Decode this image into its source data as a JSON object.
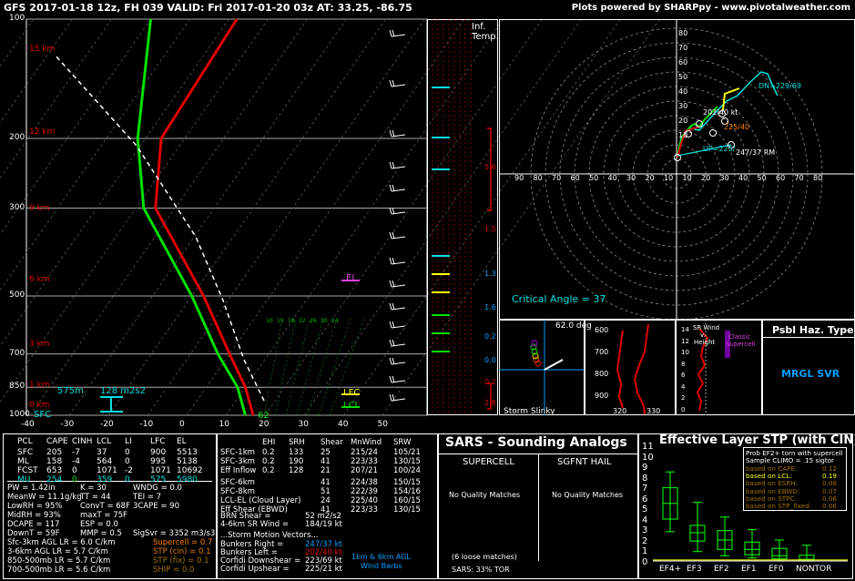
{
  "header": {
    "title": "GFS 2017-01-18 12z, FH 039   VALID: Fri 2017-01-20 03z   AT: 33.25, -86.75",
    "credit": "Plots powered by SHARPpy - www.pivotalweather.com"
  },
  "skewt": {
    "pressure_labels": [
      "100",
      "200",
      "300",
      "500",
      "700",
      "850",
      "1000"
    ],
    "height_labels": [
      "15 km",
      "12 km",
      "9 km",
      "6 km",
      "3 km",
      "1 km",
      "0 km"
    ],
    "temp_ticks": [
      "-40",
      "-30",
      "-20",
      "-10",
      "0",
      "10",
      "20",
      "30",
      "40",
      "50"
    ],
    "mix_labels": [
      "10",
      "15",
      "18",
      "22",
      "26",
      "30",
      "24"
    ],
    "annotations": {
      "el": "EL",
      "lfc": "LFC",
      "lcl": "LCL",
      "sfc": "SFC",
      "sfc_val": "575m",
      "eff_srh": "128 m2s2",
      "sfc_temp": "62"
    }
  },
  "inflection": {
    "title1": "Inf.",
    "title2": "Temp.",
    "values": [
      "5.6",
      "1.5",
      "1.3",
      "1.6",
      "0.2",
      "0.0",
      "0.2",
      "2.8"
    ]
  },
  "hodograph": {
    "y_ticks": [
      "80",
      "70",
      "60",
      "50",
      "40",
      "30",
      "20",
      "10"
    ],
    "x_ticks": [
      "90",
      "80",
      "70",
      "60",
      "50",
      "40",
      "30",
      "20",
      "10",
      "10",
      "20",
      "30",
      "40",
      "50",
      "60",
      "70",
      "80"
    ],
    "labels": {
      "dn": "DN=229/69",
      "mean": "202/40 kt",
      "lcl": "225/40",
      "up": "UP=225/",
      "rm": "247/37 RM"
    },
    "critical_angle": "Critical Angle = 37"
  },
  "storm_slinky": {
    "label": "Storm Slinky",
    "angle": "62.0 deg"
  },
  "theta_panel": {
    "y_ticks": [
      "600",
      "700",
      "800",
      "900"
    ],
    "x_ticks": [
      "320",
      "330"
    ]
  },
  "srwind_panel": {
    "title1": "SR Wind",
    "title2": "v.",
    "title3": "Height",
    "note1": "Classic",
    "note2": "Supercell",
    "y_ticks": [
      "14",
      "12",
      "10",
      "8",
      "6",
      "4",
      "2",
      "0"
    ]
  },
  "hazard": {
    "title": "Psbl Haz. Type",
    "value": "MRGL SVR"
  },
  "parcels": {
    "headers": [
      "PCL",
      "CAPE",
      "CINH",
      "LCL",
      "LI",
      "LFC",
      "EL"
    ],
    "rows": [
      [
        "SFC",
        "205",
        "-7",
        "37",
        "0",
        "900",
        "5513"
      ],
      [
        "ML",
        "158",
        "-4",
        "564",
        "0",
        "995",
        "5138"
      ],
      [
        "FCST",
        "653",
        "0",
        "1071",
        "-2",
        "1071",
        "10692"
      ],
      [
        "MU",
        "254",
        "0",
        "359",
        "0",
        "575",
        "5980"
      ]
    ]
  },
  "thermo": {
    "lines": [
      [
        "PW = 1.42in",
        "K = 30",
        "WNDG = 0.0"
      ],
      [
        "MeanW = 11.1g/kg",
        "TT = 44",
        "TEI = 7"
      ],
      [
        "LowRH = 95%",
        "ConvT = 68F",
        "3CAPE = 90"
      ],
      [
        "MidRH = 93%",
        "maxT = 75F",
        ""
      ],
      [
        "DCAPE = 117",
        "ESP = 0.0",
        ""
      ],
      [
        "DownT = 59F",
        "MMP = 0.5",
        "SigSvr = 3352 m3/s3"
      ]
    ],
    "lapse": [
      "Sfc-3km AGL LR = 6.0 C/km",
      "3-6km AGL LR = 5.7 C/km",
      "850-500mb LR = 5.7 C/km",
      "700-500mb LR = 5.6 C/km"
    ],
    "composite": [
      "Supercell = 0.7",
      "STP (cin) = 0.1",
      "STP (fix) = 0.1",
      "SHIP = 0.0"
    ]
  },
  "kinematics": {
    "headers": [
      "EHI",
      "SRH",
      "Shear",
      "MnWind",
      "SRW"
    ],
    "rows": [
      [
        "SFC-1km",
        "0.2",
        "133",
        "25",
        "215/24",
        "105/21"
      ],
      [
        "SFC-3km",
        "0.2",
        "190",
        "41",
        "223/33",
        "130/15"
      ],
      [
        "Eff Inflow",
        "0.2",
        "128",
        "21",
        "207/21",
        "100/24"
      ],
      [
        "SFC-6km",
        "",
        "",
        "41",
        "224/38",
        "150/15"
      ],
      [
        "SFC-8km",
        "",
        "",
        "51",
        "222/39",
        "154/16"
      ],
      [
        "LCL-EL (Cloud Layer)",
        "",
        "",
        "24",
        "225/40",
        "160/15"
      ],
      [
        "Eff Shear (EBWD)",
        "",
        "",
        "41",
        "223/33",
        "130/15"
      ]
    ],
    "brn": "BRN Shear =",
    "brn_val": "52 m2/s2",
    "wind46": "4-6km SR Wind =",
    "wind46_val": "184/19 kt",
    "smv": "...Storm Motion Vectors...",
    "motions": [
      [
        "Bunkers Right =",
        "247/37 kt"
      ],
      [
        "Bunkers Left =",
        "202/40 kt"
      ],
      [
        "Corfidi Downshear =",
        "223/69 kt"
      ],
      [
        "Corfidi Upshear =",
        "225/21 kt"
      ]
    ],
    "barb_label1": "1km & 6km AGL",
    "barb_label2": "Wind Barbs"
  },
  "sars": {
    "title": "SARS - Sounding Analogs",
    "col1": "SUPERCELL",
    "col2": "SGFNT HAIL",
    "nm1": "No Quality Matches",
    "nm2": "No Quality Matches",
    "loose": "(6 loose matches)",
    "tor": "SARS: 33% TOR"
  },
  "stp": {
    "title": "Effective Layer STP (with CIN)",
    "legend": [
      "Prob EF2+ torn with supercell",
      "Sample CLIMO = .15 sigtor",
      "based on CAPE:",
      "based on LCL:",
      "based on ESRH:",
      "based on EBWD:",
      "based on STPC:",
      "based on STP_fixed:"
    ],
    "legend_vals": [
      "",
      "",
      "0.12",
      "0.19",
      "0.08",
      "0.07",
      "0.06",
      "0.06"
    ],
    "y_ticks": [
      "11",
      "10",
      "9",
      "8",
      "7",
      "6",
      "5",
      "4",
      "3",
      "2",
      "1",
      "0"
    ],
    "categories": [
      "EF4+",
      "EF3",
      "EF2",
      "EF1",
      "EF0",
      "NONTOR"
    ]
  },
  "chart_data": [
    {
      "type": "line",
      "title": "Skew-T",
      "ylabel": "Pressure (mb)",
      "ylim": [
        1000,
        100
      ],
      "xlim": [
        -40,
        50
      ],
      "series": [
        {
          "name": "temperature",
          "color": "#e00000",
          "points": [
            [
              1000,
              17
            ],
            [
              850,
              10
            ],
            [
              700,
              0
            ],
            [
              500,
              -17
            ],
            [
              300,
              -45
            ],
            [
              200,
              -56
            ],
            [
              100,
              -58
            ]
          ]
        },
        {
          "name": "dewpoint",
          "color": "#00e000",
          "points": [
            [
              1000,
              15
            ],
            [
              850,
              8
            ],
            [
              700,
              -3
            ],
            [
              500,
              -20
            ],
            [
              300,
              -48
            ],
            [
              200,
              -62
            ],
            [
              100,
              -80
            ]
          ]
        }
      ]
    },
    {
      "type": "box",
      "title": "Effective Layer STP (with CIN)",
      "categories": [
        "EF4+",
        "EF3",
        "EF2",
        "EF1",
        "EF0",
        "NONTOR"
      ],
      "box": [
        [
          2.8,
          4.0,
          5.5,
          7.0,
          8.5
        ],
        [
          0.9,
          1.9,
          2.7,
          3.4,
          5.6
        ],
        [
          0.5,
          1.1,
          2.0,
          2.9,
          4.2
        ],
        [
          0.3,
          0.6,
          1.1,
          1.8,
          3.0
        ],
        [
          0.0,
          0.2,
          0.5,
          1.2,
          2.0
        ],
        [
          0.0,
          0.0,
          0.15,
          0.55,
          1.5
        ]
      ]
    }
  ]
}
